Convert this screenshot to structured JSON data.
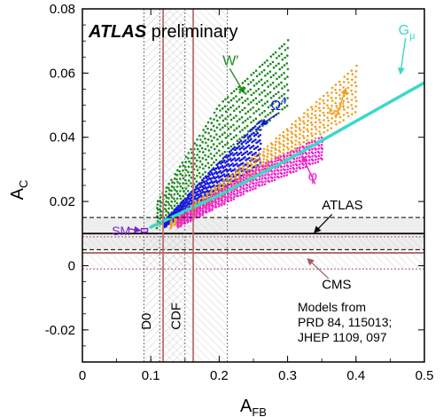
{
  "chart_data": {
    "type": "scatter",
    "title_bold": "ATLAS",
    "title_rest": " preliminary",
    "xlabel": {
      "main": "A",
      "sub": "FB"
    },
    "ylabel": {
      "main": "A",
      "sub": "C"
    },
    "xlim": [
      0,
      0.5
    ],
    "ylim": [
      -0.03,
      0.08
    ],
    "xticks": [
      0,
      0.1,
      0.2,
      0.3,
      0.4,
      0.5
    ],
    "xtick_labels": [
      "0",
      "0.1",
      "0.2",
      "0.3",
      "0.4",
      "0.5"
    ],
    "yticks": [
      -0.02,
      0,
      0.02,
      0.04,
      0.06,
      0.08
    ],
    "ytick_labels": [
      "-0.02",
      "0",
      "0.02",
      "0.04",
      "0.06",
      "0.08"
    ],
    "models": [
      {
        "name": "W′",
        "color": "#1a8a1a",
        "label_pos": [
          0.205,
          0.0625
        ],
        "arrow_to": [
          0.236,
          0.054
        ],
        "band_low": [
          [
            0.11,
            0.012
          ],
          [
            0.2,
            0.032
          ],
          [
            0.3,
            0.05
          ]
        ],
        "band_high": [
          [
            0.11,
            0.02
          ],
          [
            0.2,
            0.05
          ],
          [
            0.3,
            0.07
          ]
        ]
      },
      {
        "name": "Ω",
        "sup": "4",
        "color": "#1515e0",
        "label_pos": [
          0.275,
          0.0485
        ],
        "arrow_to": [
          0.262,
          0.044
        ],
        "band_low": [
          [
            0.12,
            0.012
          ],
          [
            0.19,
            0.022
          ],
          [
            0.26,
            0.032
          ]
        ],
        "band_high": [
          [
            0.12,
            0.014
          ],
          [
            0.19,
            0.03
          ],
          [
            0.26,
            0.045
          ]
        ]
      },
      {
        "name": "ω",
        "sup": "4",
        "color": "#f0a020",
        "label_pos": [
          0.36,
          0.047
        ],
        "arrow_to": [
          0.385,
          0.055
        ],
        "band_low": [
          [
            0.13,
            0.012
          ],
          [
            0.27,
            0.03
          ],
          [
            0.4,
            0.048
          ]
        ],
        "band_high": [
          [
            0.13,
            0.014
          ],
          [
            0.27,
            0.037
          ],
          [
            0.41,
            0.064
          ]
        ]
      },
      {
        "name": "φ",
        "color": "#ee22cc",
        "label_pos": [
          0.33,
          0.0265
        ],
        "arrow_to": [
          0.322,
          0.034
        ],
        "band_low": [
          [
            0.14,
            0.012
          ],
          [
            0.25,
            0.024
          ],
          [
            0.35,
            0.033
          ]
        ],
        "band_high": [
          [
            0.14,
            0.015
          ],
          [
            0.25,
            0.03
          ],
          [
            0.35,
            0.04
          ]
        ]
      },
      {
        "name": "G",
        "sub": "μ",
        "color": "#3cd8c8",
        "label_pos": [
          0.462,
          0.072
        ],
        "arrow_to": [
          0.465,
          0.06
        ],
        "line": [
          [
            0.1,
            0.012
          ],
          [
            0.2,
            0.022
          ],
          [
            0.3,
            0.033
          ],
          [
            0.4,
            0.045
          ],
          [
            0.5,
            0.057
          ]
        ]
      }
    ],
    "sm": {
      "label": "SM",
      "point": [
        0.09,
        0.011
      ],
      "color": "#7a22cc"
    },
    "measurements": [
      {
        "name": "ATLAS",
        "axis": "y",
        "value": 0.01,
        "band": [
          0.005,
          0.015
        ],
        "color": "#000000",
        "label_pos": [
          0.35,
          0.0175
        ],
        "arrow_from": [
          0.365,
          0.016
        ],
        "arrow_to": [
          0.34,
          0.0105
        ]
      },
      {
        "name": "CMS",
        "axis": "y",
        "value": 0.004,
        "band": [
          -0.001,
          0.009
        ],
        "color": "#a85a5a",
        "label_pos": [
          0.35,
          -0.0072
        ],
        "arrow_from": [
          0.36,
          -0.004
        ],
        "arrow_to": [
          0.33,
          0.002
        ]
      },
      {
        "name": "D0",
        "axis": "x",
        "value": 0.118,
        "band": [
          0.09,
          0.15
        ],
        "color": "#c07070",
        "label_pos": [
          0.1,
          -0.02
        ]
      },
      {
        "name": "CDF",
        "axis": "x",
        "value": 0.162,
        "band": [
          0.113,
          0.212
        ],
        "color": "#c07070",
        "label_pos": [
          0.143,
          -0.02
        ]
      }
    ],
    "notes": [
      "Models from",
      "PRD 84, 115013;",
      "JHEP 1109, 097"
    ]
  }
}
